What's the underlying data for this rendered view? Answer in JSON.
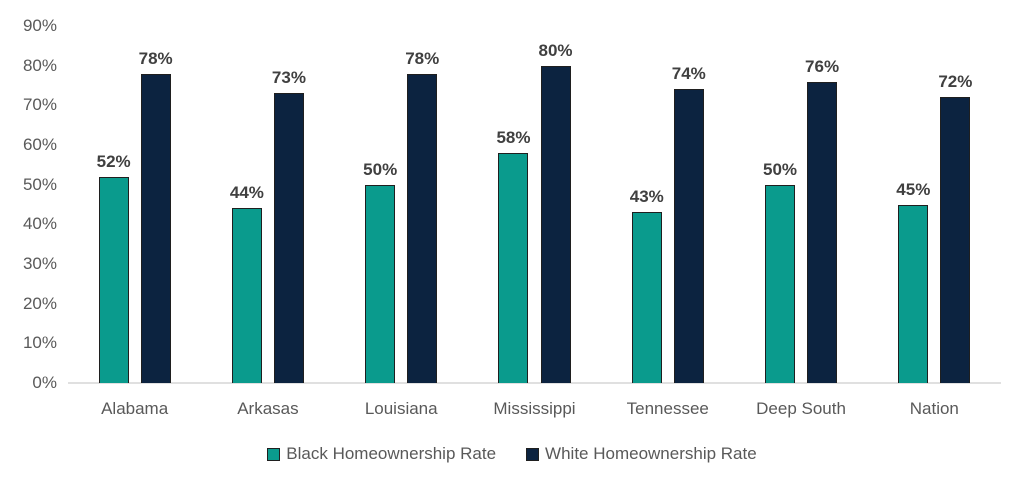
{
  "chart_data": {
    "type": "bar",
    "title": "",
    "xlabel": "",
    "ylabel": "",
    "categories": [
      "Alabama",
      "Arkasas",
      "Louisiana",
      "Mississippi",
      "Tennessee",
      "Deep South",
      "Nation"
    ],
    "series": [
      {
        "name": "Black Homeownership Rate",
        "color": "#0A9B8D",
        "values": [
          52,
          44,
          50,
          58,
          43,
          50,
          45
        ]
      },
      {
        "name": "White Homeownership Rate",
        "color": "#0C2340",
        "values": [
          78,
          73,
          78,
          80,
          74,
          76,
          72
        ]
      }
    ],
    "value_label_format": "{v}%",
    "y_axis": {
      "min": 0,
      "max": 90,
      "step": 10,
      "ticks": [
        "0%",
        "10%",
        "20%",
        "30%",
        "40%",
        "50%",
        "60%",
        "70%",
        "80%",
        "90%"
      ]
    },
    "grid": false,
    "legend_position": "bottom-center",
    "style": {
      "tick_text_color": "#595959",
      "data_label_color": "#404040",
      "axis_line_color": "#E0E0E0",
      "bar_border_color": "#1F1F1F",
      "background": "#FFFFFF"
    }
  }
}
